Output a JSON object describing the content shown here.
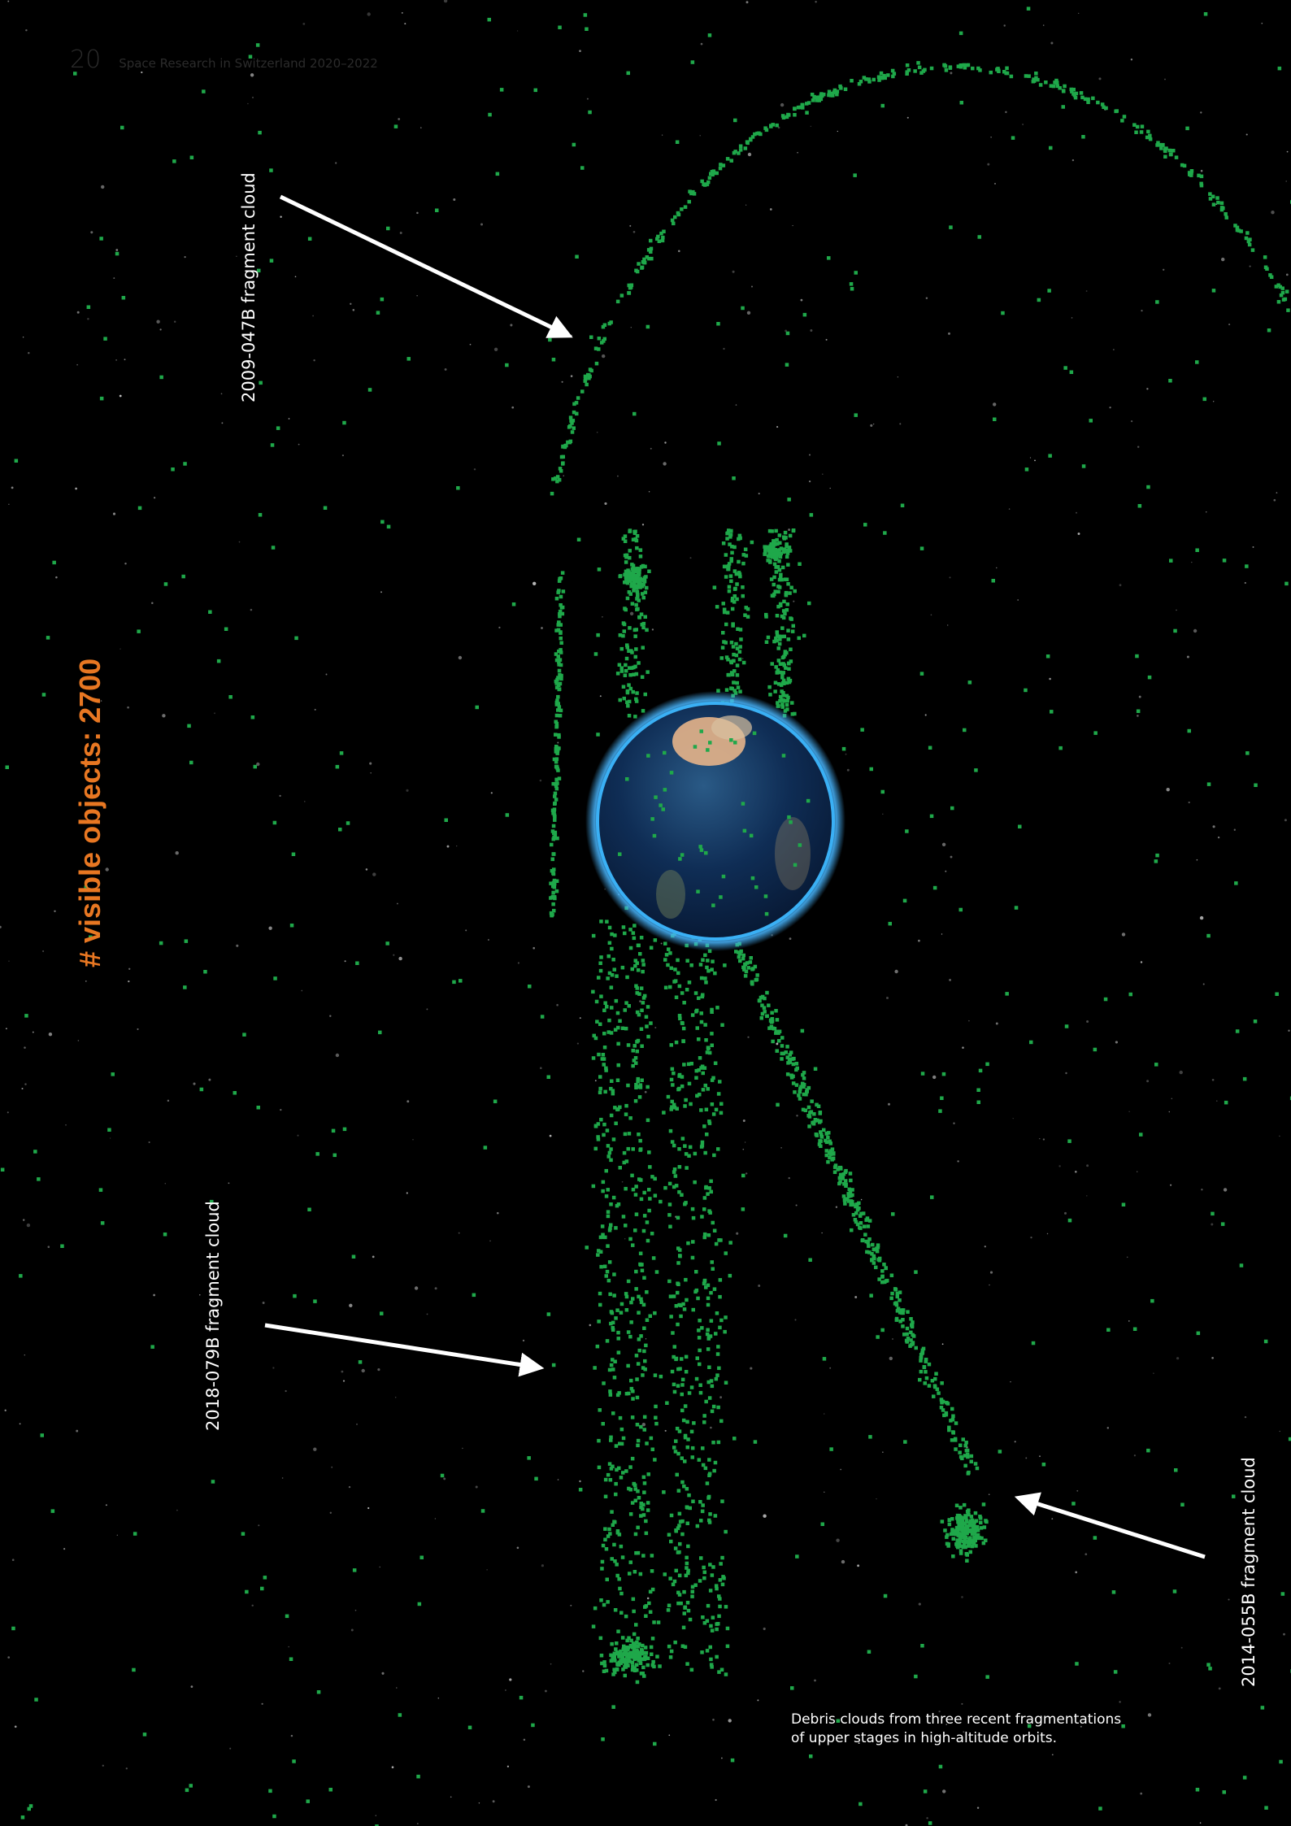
{
  "header": {
    "page_number": "20",
    "running_title": "Space Research in Switzerland 2020–2022"
  },
  "labels": {
    "cloud_2009": "2009-047B fragment cloud",
    "cloud_2018": "2018-079B fragment cloud",
    "cloud_2014": "2014-055B fragment cloud"
  },
  "counter": {
    "text": "# visible objects: 2700"
  },
  "caption": {
    "line1": "Debris clouds from three recent fragmentations",
    "line2": "of upper stages in high-altitude orbits."
  },
  "colors": {
    "background": "#000000",
    "debris": "#1fa84a",
    "counter": "#e87722",
    "text": "#ffffff"
  },
  "icons": [
    "arrow-icon",
    "earth-globe"
  ]
}
